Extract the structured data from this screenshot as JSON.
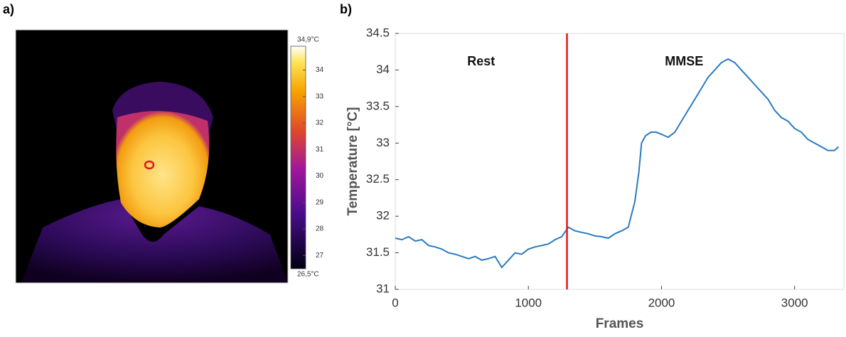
{
  "figure_labels": [
    "a)",
    "b)"
  ],
  "colorbar": {
    "max_label": "34,9°C",
    "min_label": "26,5°C",
    "lim": [
      26.5,
      34.9
    ],
    "ticks": [
      27,
      28,
      29,
      30,
      31,
      32,
      33,
      34
    ]
  },
  "chart_data": {
    "type": "line",
    "xlabel": "Frames",
    "ylabel": "Temperature [°C]",
    "annotations": [
      "Rest",
      "MMSE"
    ],
    "vline": {
      "x": 1290,
      "color": "#e8141b"
    },
    "color": "#2a7bbf",
    "x": [
      0,
      50,
      100,
      150,
      200,
      250,
      300,
      350,
      400,
      450,
      500,
      550,
      600,
      650,
      700,
      750,
      800,
      850,
      900,
      950,
      1000,
      1050,
      1100,
      1150,
      1200,
      1250,
      1300,
      1350,
      1400,
      1450,
      1500,
      1550,
      1600,
      1650,
      1700,
      1750,
      1800,
      1830,
      1850,
      1880,
      1920,
      1960,
      2000,
      2050,
      2100,
      2150,
      2200,
      2250,
      2300,
      2350,
      2400,
      2450,
      2500,
      2550,
      2600,
      2650,
      2700,
      2750,
      2800,
      2850,
      2900,
      2950,
      3000,
      3050,
      3100,
      3150,
      3200,
      3250,
      3300,
      3330
    ],
    "values": [
      31.7,
      31.68,
      31.72,
      31.66,
      31.68,
      31.6,
      31.58,
      31.55,
      31.5,
      31.48,
      31.45,
      31.42,
      31.45,
      31.4,
      31.42,
      31.45,
      31.3,
      31.4,
      31.5,
      31.48,
      31.55,
      31.58,
      31.6,
      31.62,
      31.68,
      31.72,
      31.85,
      31.8,
      31.78,
      31.76,
      31.73,
      31.72,
      31.7,
      31.76,
      31.8,
      31.85,
      32.2,
      32.6,
      33.0,
      33.1,
      33.15,
      33.15,
      33.12,
      33.08,
      33.15,
      33.3,
      33.45,
      33.6,
      33.75,
      33.9,
      34.0,
      34.1,
      34.15,
      34.1,
      34.0,
      33.9,
      33.8,
      33.7,
      33.6,
      33.45,
      33.35,
      33.3,
      33.2,
      33.15,
      33.05,
      33.0,
      32.95,
      32.9,
      32.9,
      32.95
    ],
    "xlim": [
      0,
      3370
    ],
    "ylim": [
      31,
      34.5
    ],
    "xticks": [
      0,
      1000,
      2000,
      3000
    ],
    "yticks": [
      31,
      31.5,
      32,
      32.5,
      33,
      33.5,
      34,
      34.5
    ]
  }
}
